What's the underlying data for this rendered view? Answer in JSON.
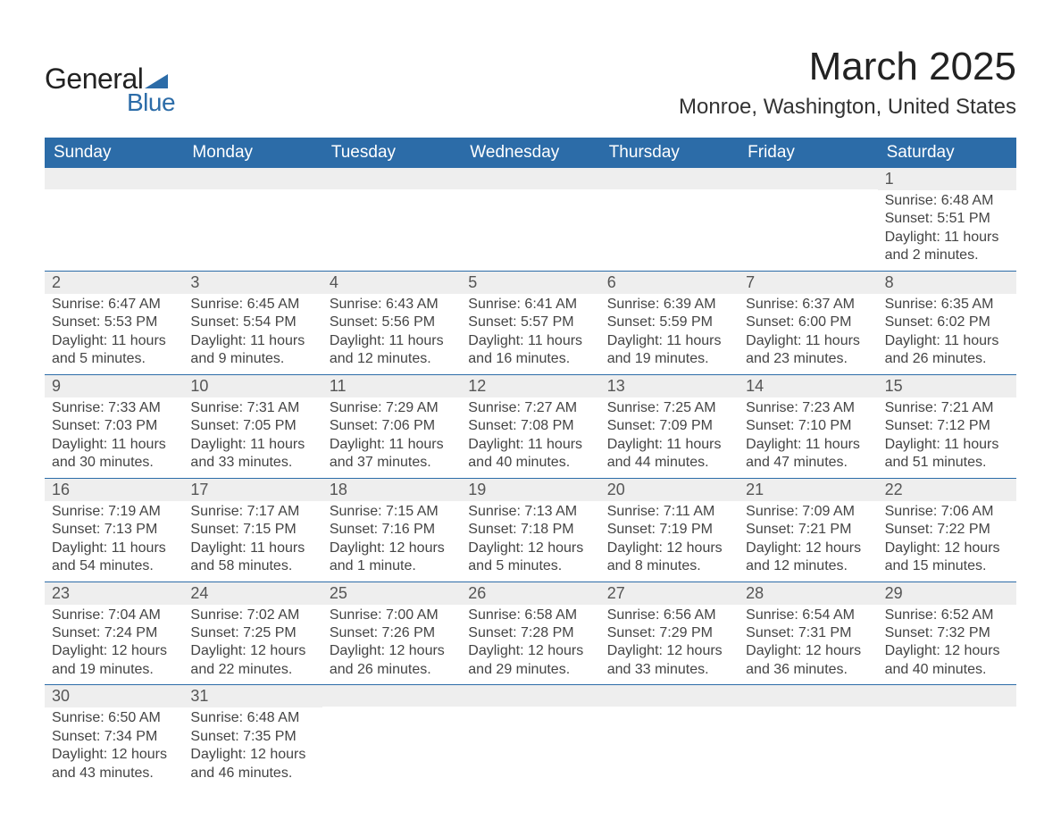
{
  "logo": {
    "general": "General",
    "blue": "Blue",
    "shape_color": "#2c6ca8"
  },
  "title": "March 2025",
  "location": "Monroe, Washington, United States",
  "colors": {
    "header_bg": "#2c6ca8",
    "header_text": "#ffffff",
    "daynum_bg": "#eeeeee",
    "text": "#444444",
    "row_separator": "#2c6ca8",
    "page_bg": "#ffffff"
  },
  "typography": {
    "title_fontsize": 44,
    "location_fontsize": 24,
    "header_fontsize": 19,
    "daynum_fontsize": 18,
    "body_fontsize": 16,
    "logo_fontsize": 32
  },
  "day_names": [
    "Sunday",
    "Monday",
    "Tuesday",
    "Wednesday",
    "Thursday",
    "Friday",
    "Saturday"
  ],
  "weeks": [
    [
      {
        "empty": true
      },
      {
        "empty": true
      },
      {
        "empty": true
      },
      {
        "empty": true
      },
      {
        "empty": true
      },
      {
        "empty": true
      },
      {
        "day": 1,
        "sunrise": "6:48 AM",
        "sunset": "5:51 PM",
        "daylight": "11 hours and 2 minutes."
      }
    ],
    [
      {
        "day": 2,
        "sunrise": "6:47 AM",
        "sunset": "5:53 PM",
        "daylight": "11 hours and 5 minutes."
      },
      {
        "day": 3,
        "sunrise": "6:45 AM",
        "sunset": "5:54 PM",
        "daylight": "11 hours and 9 minutes."
      },
      {
        "day": 4,
        "sunrise": "6:43 AM",
        "sunset": "5:56 PM",
        "daylight": "11 hours and 12 minutes."
      },
      {
        "day": 5,
        "sunrise": "6:41 AM",
        "sunset": "5:57 PM",
        "daylight": "11 hours and 16 minutes."
      },
      {
        "day": 6,
        "sunrise": "6:39 AM",
        "sunset": "5:59 PM",
        "daylight": "11 hours and 19 minutes."
      },
      {
        "day": 7,
        "sunrise": "6:37 AM",
        "sunset": "6:00 PM",
        "daylight": "11 hours and 23 minutes."
      },
      {
        "day": 8,
        "sunrise": "6:35 AM",
        "sunset": "6:02 PM",
        "daylight": "11 hours and 26 minutes."
      }
    ],
    [
      {
        "day": 9,
        "sunrise": "7:33 AM",
        "sunset": "7:03 PM",
        "daylight": "11 hours and 30 minutes."
      },
      {
        "day": 10,
        "sunrise": "7:31 AM",
        "sunset": "7:05 PM",
        "daylight": "11 hours and 33 minutes."
      },
      {
        "day": 11,
        "sunrise": "7:29 AM",
        "sunset": "7:06 PM",
        "daylight": "11 hours and 37 minutes."
      },
      {
        "day": 12,
        "sunrise": "7:27 AM",
        "sunset": "7:08 PM",
        "daylight": "11 hours and 40 minutes."
      },
      {
        "day": 13,
        "sunrise": "7:25 AM",
        "sunset": "7:09 PM",
        "daylight": "11 hours and 44 minutes."
      },
      {
        "day": 14,
        "sunrise": "7:23 AM",
        "sunset": "7:10 PM",
        "daylight": "11 hours and 47 minutes."
      },
      {
        "day": 15,
        "sunrise": "7:21 AM",
        "sunset": "7:12 PM",
        "daylight": "11 hours and 51 minutes."
      }
    ],
    [
      {
        "day": 16,
        "sunrise": "7:19 AM",
        "sunset": "7:13 PM",
        "daylight": "11 hours and 54 minutes."
      },
      {
        "day": 17,
        "sunrise": "7:17 AM",
        "sunset": "7:15 PM",
        "daylight": "11 hours and 58 minutes."
      },
      {
        "day": 18,
        "sunrise": "7:15 AM",
        "sunset": "7:16 PM",
        "daylight": "12 hours and 1 minute."
      },
      {
        "day": 19,
        "sunrise": "7:13 AM",
        "sunset": "7:18 PM",
        "daylight": "12 hours and 5 minutes."
      },
      {
        "day": 20,
        "sunrise": "7:11 AM",
        "sunset": "7:19 PM",
        "daylight": "12 hours and 8 minutes."
      },
      {
        "day": 21,
        "sunrise": "7:09 AM",
        "sunset": "7:21 PM",
        "daylight": "12 hours and 12 minutes."
      },
      {
        "day": 22,
        "sunrise": "7:06 AM",
        "sunset": "7:22 PM",
        "daylight": "12 hours and 15 minutes."
      }
    ],
    [
      {
        "day": 23,
        "sunrise": "7:04 AM",
        "sunset": "7:24 PM",
        "daylight": "12 hours and 19 minutes."
      },
      {
        "day": 24,
        "sunrise": "7:02 AM",
        "sunset": "7:25 PM",
        "daylight": "12 hours and 22 minutes."
      },
      {
        "day": 25,
        "sunrise": "7:00 AM",
        "sunset": "7:26 PM",
        "daylight": "12 hours and 26 minutes."
      },
      {
        "day": 26,
        "sunrise": "6:58 AM",
        "sunset": "7:28 PM",
        "daylight": "12 hours and 29 minutes."
      },
      {
        "day": 27,
        "sunrise": "6:56 AM",
        "sunset": "7:29 PM",
        "daylight": "12 hours and 33 minutes."
      },
      {
        "day": 28,
        "sunrise": "6:54 AM",
        "sunset": "7:31 PM",
        "daylight": "12 hours and 36 minutes."
      },
      {
        "day": 29,
        "sunrise": "6:52 AM",
        "sunset": "7:32 PM",
        "daylight": "12 hours and 40 minutes."
      }
    ],
    [
      {
        "day": 30,
        "sunrise": "6:50 AM",
        "sunset": "7:34 PM",
        "daylight": "12 hours and 43 minutes."
      },
      {
        "day": 31,
        "sunrise": "6:48 AM",
        "sunset": "7:35 PM",
        "daylight": "12 hours and 46 minutes."
      },
      {
        "empty": true
      },
      {
        "empty": true
      },
      {
        "empty": true
      },
      {
        "empty": true
      },
      {
        "empty": true
      }
    ]
  ],
  "labels": {
    "sunrise": "Sunrise:",
    "sunset": "Sunset:",
    "daylight": "Daylight:"
  }
}
